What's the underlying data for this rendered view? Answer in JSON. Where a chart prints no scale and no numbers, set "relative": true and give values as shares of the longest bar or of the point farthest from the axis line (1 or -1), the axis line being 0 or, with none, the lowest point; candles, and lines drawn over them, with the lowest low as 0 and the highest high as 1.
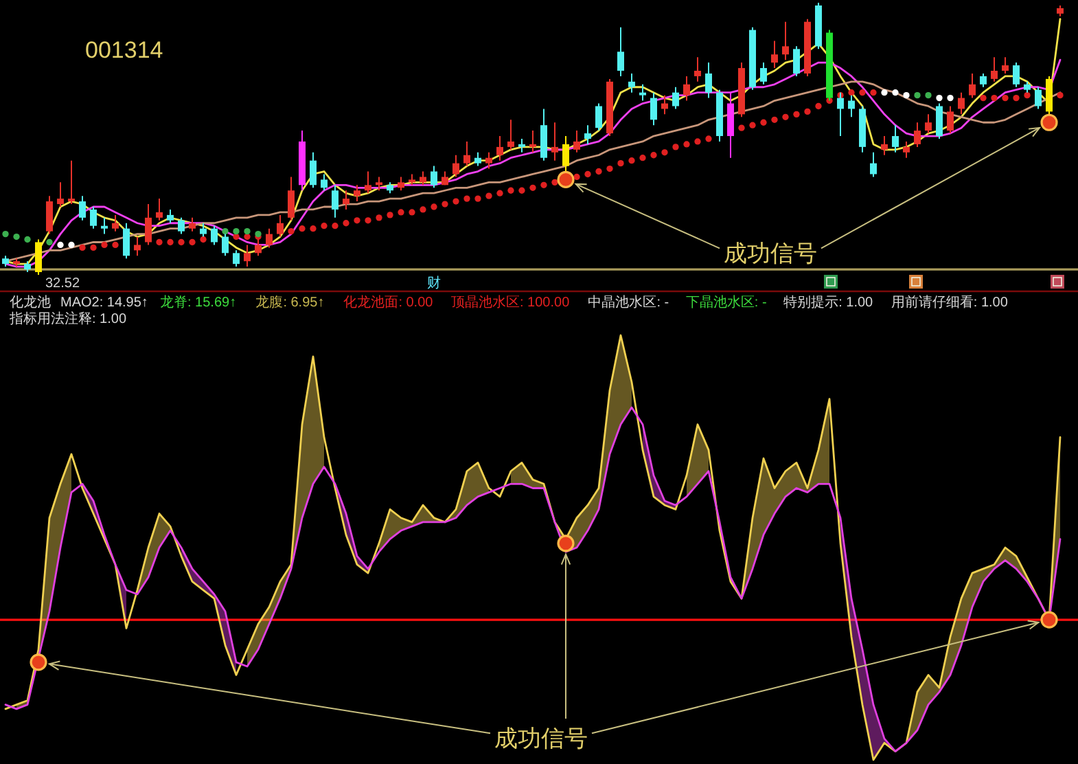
{
  "chart_data": [
    {
      "type": "candlestick",
      "title": "001314",
      "relative": true,
      "categories": [
        null,
        null,
        null,
        null,
        null,
        null,
        null,
        null,
        null,
        null,
        null,
        null,
        null,
        null,
        null,
        null,
        null,
        null,
        null,
        null,
        null,
        null,
        null,
        null,
        null,
        null,
        null,
        null,
        null,
        null,
        null,
        null,
        null,
        null,
        null,
        null,
        null,
        null,
        null,
        "财",
        null,
        null,
        null,
        null,
        null,
        null,
        null,
        null,
        null,
        null,
        null,
        null,
        null,
        null,
        null,
        null,
        null,
        null,
        null,
        null,
        null,
        null,
        null,
        null,
        null,
        null,
        null,
        null,
        null,
        null,
        null,
        null,
        null,
        null,
        null,
        null,
        null,
        null,
        null,
        null,
        null,
        null,
        null,
        null,
        null,
        null,
        null,
        null,
        null,
        null,
        null,
        null,
        null,
        null,
        null,
        null,
        null
      ],
      "ohlc": [
        [
          0.06,
          0.07,
          0.03,
          0.04
        ],
        [
          0.04,
          0.06,
          0.03,
          0.05
        ],
        [
          0.04,
          0.05,
          0.01,
          0.02
        ],
        [
          0.01,
          0.13,
          0,
          0.12
        ],
        [
          0.16,
          0.29,
          0.15,
          0.27
        ],
        [
          0.26,
          0.34,
          0.25,
          0.28
        ],
        [
          0.27,
          0.42,
          0.26,
          0.28
        ],
        [
          0.27,
          0.29,
          0.2,
          0.21
        ],
        [
          0.24,
          0.25,
          0.17,
          0.18
        ],
        [
          0.18,
          0.21,
          0.15,
          0.17
        ],
        [
          0.17,
          0.22,
          0.16,
          0.19
        ],
        [
          0.17,
          0.19,
          0.06,
          0.07
        ],
        [
          0.09,
          0.14,
          0.07,
          0.11
        ],
        [
          0.12,
          0.26,
          0.11,
          0.21
        ],
        [
          0.21,
          0.28,
          0.2,
          0.23
        ],
        [
          0.22,
          0.24,
          0.19,
          0.2
        ],
        [
          0.2,
          0.21,
          0.15,
          0.16
        ],
        [
          0.17,
          0.21,
          0.16,
          0.19
        ],
        [
          0.17,
          0.19,
          0.14,
          0.15
        ],
        [
          0.17,
          0.18,
          0.11,
          0.12
        ],
        [
          0.14,
          0.15,
          0.07,
          0.08
        ],
        [
          0.08,
          0.09,
          0.03,
          0.04
        ],
        [
          0.05,
          0.11,
          0.03,
          0.08
        ],
        [
          0.08,
          0.13,
          0.07,
          0.11
        ],
        [
          0.11,
          0.17,
          0.1,
          0.15
        ],
        [
          0.15,
          0.22,
          0.14,
          0.19
        ],
        [
          0.21,
          0.36,
          0.2,
          0.31
        ],
        [
          0.33,
          0.53,
          0.31,
          0.49
        ],
        [
          0.42,
          0.45,
          0.32,
          0.33
        ],
        [
          0.35,
          0.37,
          0.31,
          0.32
        ],
        [
          0.31,
          0.33,
          0.21,
          0.24
        ],
        [
          0.26,
          0.31,
          0.24,
          0.28
        ],
        [
          0.29,
          0.33,
          0.27,
          0.31
        ],
        [
          0.31,
          0.38,
          0.3,
          0.33
        ],
        [
          0.33,
          0.36,
          0.31,
          0.34
        ],
        [
          0.33,
          0.34,
          0.3,
          0.31
        ],
        [
          0.32,
          0.36,
          0.31,
          0.34
        ],
        [
          0.34,
          0.37,
          0.33,
          0.35
        ],
        [
          0.34,
          0.38,
          0.33,
          0.36
        ],
        [
          0.38,
          0.4,
          0.32,
          0.33
        ],
        [
          0.33,
          0.38,
          0.33,
          0.36
        ],
        [
          0.37,
          0.44,
          0.36,
          0.41
        ],
        [
          0.41,
          0.49,
          0.4,
          0.44
        ],
        [
          0.43,
          0.45,
          0.4,
          0.41
        ],
        [
          0.41,
          0.45,
          0.39,
          0.43
        ],
        [
          0.44,
          0.51,
          0.42,
          0.47
        ],
        [
          0.47,
          0.57,
          0.46,
          0.49
        ],
        [
          0.48,
          0.5,
          0.45,
          0.47
        ],
        [
          0.47,
          0.53,
          0.45,
          0.48
        ],
        [
          0.55,
          0.61,
          0.42,
          0.43
        ],
        [
          0.45,
          0.56,
          0.42,
          0.47
        ],
        [
          0.4,
          0.51,
          0.37,
          0.48
        ],
        [
          0.46,
          0.53,
          0.45,
          0.49
        ],
        [
          0.52,
          0.55,
          0.48,
          0.5
        ],
        [
          0.62,
          0.63,
          0.53,
          0.54
        ],
        [
          0.52,
          0.72,
          0.51,
          0.71
        ],
        [
          0.82,
          0.91,
          0.73,
          0.75
        ],
        [
          0.71,
          0.74,
          0.67,
          0.69
        ],
        [
          0.67,
          0.7,
          0.64,
          0.66
        ],
        [
          0.65,
          0.67,
          0.55,
          0.57
        ],
        [
          0.61,
          0.66,
          0.59,
          0.63
        ],
        [
          0.67,
          0.69,
          0.61,
          0.62
        ],
        [
          0.66,
          0.73,
          0.64,
          0.7
        ],
        [
          0.73,
          0.8,
          0.71,
          0.75
        ],
        [
          0.74,
          0.78,
          0.65,
          0.67
        ],
        [
          0.67,
          0.68,
          0.49,
          0.51
        ],
        [
          0.51,
          0.67,
          0.43,
          0.63
        ],
        [
          0.59,
          0.78,
          0.58,
          0.76
        ],
        [
          0.9,
          0.91,
          0.68,
          0.69
        ],
        [
          0.76,
          0.78,
          0.7,
          0.71
        ],
        [
          0.78,
          0.86,
          0.76,
          0.81
        ],
        [
          0.81,
          0.93,
          0.79,
          0.84
        ],
        [
          0.83,
          0.84,
          0.73,
          0.74
        ],
        [
          0.74,
          0.94,
          0.73,
          0.93
        ],
        [
          0.99,
          1,
          0.83,
          0.84
        ],
        [
          0.89,
          0.9,
          0.64,
          0.65
        ],
        [
          0.65,
          0.67,
          0.51,
          0.61
        ],
        [
          0.64,
          0.66,
          0.58,
          0.61
        ],
        [
          0.61,
          0.62,
          0.45,
          0.47
        ],
        [
          0.41,
          0.45,
          0.36,
          0.37
        ],
        [
          0.46,
          0.51,
          0.44,
          0.48
        ],
        [
          0.51,
          0.55,
          0.45,
          0.47
        ],
        [
          0.45,
          0.49,
          0.43,
          0.47
        ],
        [
          0.48,
          0.56,
          0.47,
          0.53
        ],
        [
          0.53,
          0.59,
          0.52,
          0.56
        ],
        [
          0.62,
          0.63,
          0.5,
          0.51
        ],
        [
          0.53,
          0.62,
          0.52,
          0.6
        ],
        [
          0.61,
          0.67,
          0.59,
          0.65
        ],
        [
          0.66,
          0.74,
          0.65,
          0.7
        ],
        [
          0.73,
          0.74,
          0.69,
          0.7
        ],
        [
          0.72,
          0.8,
          0.71,
          0.75
        ],
        [
          0.75,
          0.8,
          0.74,
          0.77
        ],
        [
          0.77,
          0.78,
          0.69,
          0.7
        ],
        [
          0.7,
          0.71,
          0.67,
          0.68
        ],
        [
          0.68,
          0.69,
          0.61,
          0.62
        ],
        [
          0.6,
          0.73,
          0.59,
          0.72
        ],
        [
          0.96,
          0.99,
          0.95,
          0.98
        ]
      ],
      "colors": [
        "#54f0f0",
        "#e8322a",
        "#54f0f0",
        "#ffe800",
        "#e8322a",
        "#e8322a",
        "#e8322a",
        "#54f0f0",
        "#54f0f0",
        "#54f0f0",
        "#e8322a",
        "#54f0f0",
        "#e8322a",
        "#e8322a",
        "#e8322a",
        "#54f0f0",
        "#54f0f0",
        "#e8322a",
        "#54f0f0",
        "#54f0f0",
        "#54f0f0",
        "#54f0f0",
        "#e8322a",
        "#e8322a",
        "#e8322a",
        "#e8322a",
        "#e8322a",
        "#ff30ff",
        "#54f0f0",
        "#54f0f0",
        "#54f0f0",
        "#e8322a",
        "#e8322a",
        "#e8322a",
        "#e8322a",
        "#54f0f0",
        "#e8322a",
        "#e8322a",
        "#e8322a",
        "#54f0f0",
        "#e8322a",
        "#e8322a",
        "#e8322a",
        "#54f0f0",
        "#e8322a",
        "#e8322a",
        "#e8322a",
        "#54f0f0",
        "#e8322a",
        "#54f0f0",
        "#e8322a",
        "#ffe800",
        "#e8322a",
        "#54f0f0",
        "#54f0f0",
        "#e8322a",
        "#54f0f0",
        "#54f0f0",
        "#54f0f0",
        "#54f0f0",
        "#e8322a",
        "#54f0f0",
        "#e8322a",
        "#e8322a",
        "#54f0f0",
        "#54f0f0",
        "#ff30ff",
        "#e8322a",
        "#54f0f0",
        "#54f0f0",
        "#e8322a",
        "#e8322a",
        "#54f0f0",
        "#e8322a",
        "#54f0f0",
        "#20e030",
        "#54f0f0",
        "#54f0f0",
        "#54f0f0",
        "#54f0f0",
        "#e8322a",
        "#54f0f0",
        "#e8322a",
        "#e8322a",
        "#e8322a",
        "#54f0f0",
        "#e8322a",
        "#e8322a",
        "#e8322a",
        "#54f0f0",
        "#e8322a",
        "#e8322a",
        "#54f0f0",
        "#54f0f0",
        "#54f0f0",
        "#ffe800",
        "#e8322a"
      ],
      "series": [
        {
          "type": "line",
          "color": "#f2e24a",
          "values": [
            0.05,
            0.04,
            0.04,
            0.09,
            0.16,
            0.25,
            0.27,
            0.26,
            0.23,
            0.21,
            0.2,
            0.16,
            0.14,
            0.15,
            0.19,
            0.21,
            0.2,
            0.19,
            0.18,
            0.16,
            0.13,
            0.1,
            0.08,
            0.09,
            0.11,
            0.14,
            0.2,
            0.31,
            0.37,
            0.38,
            0.33,
            0.3,
            0.29,
            0.3,
            0.32,
            0.33,
            0.33,
            0.34,
            0.34,
            0.34,
            0.34,
            0.37,
            0.4,
            0.42,
            0.42,
            0.44,
            0.46,
            0.47,
            0.47,
            0.47,
            0.46,
            0.46,
            0.48,
            0.5,
            0.53,
            0.58,
            0.67,
            0.69,
            0.69,
            0.67,
            0.65,
            0.64,
            0.66,
            0.69,
            0.7,
            0.67,
            0.64,
            0.66,
            0.7,
            0.73,
            0.75,
            0.78,
            0.79,
            0.82,
            0.85,
            0.8,
            0.73,
            0.67,
            0.62,
            0.48,
            0.46,
            0.46,
            0.47,
            0.49,
            0.52,
            0.53,
            0.55,
            0.58,
            0.63,
            0.67,
            0.7,
            0.73,
            0.73,
            0.71,
            0.67,
            0.63,
            0.94
          ]
        },
        {
          "type": "line",
          "color": "#f040f0",
          "values": [
            0.04,
            0.03,
            0.03,
            0.05,
            0.09,
            0.15,
            0.2,
            0.23,
            0.25,
            0.25,
            0.23,
            0.21,
            0.19,
            0.18,
            0.18,
            0.19,
            0.19,
            0.19,
            0.19,
            0.18,
            0.16,
            0.14,
            0.12,
            0.11,
            0.11,
            0.12,
            0.15,
            0.21,
            0.27,
            0.31,
            0.33,
            0.33,
            0.32,
            0.32,
            0.32,
            0.32,
            0.33,
            0.33,
            0.33,
            0.33,
            0.34,
            0.35,
            0.37,
            0.38,
            0.4,
            0.41,
            0.43,
            0.44,
            0.45,
            0.46,
            0.46,
            0.46,
            0.47,
            0.48,
            0.49,
            0.52,
            0.57,
            0.61,
            0.63,
            0.64,
            0.65,
            0.66,
            0.66,
            0.67,
            0.67,
            0.67,
            0.67,
            0.68,
            0.69,
            0.69,
            0.7,
            0.72,
            0.74,
            0.76,
            0.78,
            0.78,
            0.76,
            0.73,
            0.69,
            0.64,
            0.59,
            0.55,
            0.52,
            0.51,
            0.51,
            0.51,
            0.52,
            0.54,
            0.58,
            0.61,
            0.64,
            0.67,
            0.68,
            0.69,
            0.69,
            0.68,
            0.79
          ]
        },
        {
          "type": "line",
          "color": "#c8967a",
          "values": [
            0.05,
            0.06,
            0.07,
            0.08,
            0.09,
            0.09,
            0.1,
            0.11,
            0.12,
            0.12,
            0.13,
            0.14,
            0.15,
            0.15,
            0.16,
            0.17,
            0.17,
            0.18,
            0.19,
            0.19,
            0.2,
            0.21,
            0.21,
            0.22,
            0.22,
            0.23,
            0.23,
            0.24,
            0.24,
            0.25,
            0.25,
            0.26,
            0.26,
            0.27,
            0.27,
            0.28,
            0.28,
            0.29,
            0.3,
            0.3,
            0.31,
            0.32,
            0.32,
            0.33,
            0.34,
            0.34,
            0.35,
            0.36,
            0.37,
            0.38,
            0.39,
            0.4,
            0.42,
            0.43,
            0.44,
            0.46,
            0.47,
            0.48,
            0.49,
            0.51,
            0.52,
            0.53,
            0.54,
            0.55,
            0.57,
            0.58,
            0.59,
            0.6,
            0.61,
            0.62,
            0.64,
            0.65,
            0.66,
            0.67,
            0.68,
            0.69,
            0.7,
            0.71,
            0.71,
            0.7,
            0.68,
            0.67,
            0.65,
            0.63,
            0.62,
            0.6,
            0.59,
            0.58,
            0.57,
            0.56,
            0.56,
            0.57,
            0.59,
            0.61,
            0.63,
            0.65,
            0.67
          ]
        },
        {
          "type": "scatter",
          "marker": "circle",
          "color": "#e02020",
          "values": [
            null,
            null,
            null,
            null,
            null,
            null,
            null,
            0.1,
            0.1,
            0.11,
            0.11,
            null,
            null,
            null,
            0.12,
            0.12,
            0.12,
            0.12,
            0.13,
            null,
            null,
            0.14,
            0.14,
            0.14,
            null,
            null,
            0.16,
            0.17,
            0.17,
            0.18,
            0.18,
            0.19,
            0.2,
            0.2,
            0.21,
            0.22,
            0.23,
            0.23,
            0.24,
            0.25,
            0.26,
            0.27,
            0.28,
            0.28,
            0.29,
            0.3,
            0.31,
            0.31,
            0.32,
            0.33,
            0.34,
            null,
            0.36,
            0.37,
            0.38,
            0.39,
            0.41,
            0.42,
            0.43,
            0.44,
            0.45,
            0.47,
            0.48,
            0.49,
            0.5,
            null,
            null,
            0.54,
            0.55,
            0.56,
            0.57,
            0.58,
            0.59,
            0.6,
            0.62,
            0.64,
            0.66,
            0.67,
            0.67,
            0.67,
            null,
            null,
            null,
            null,
            null,
            null,
            null,
            null,
            null,
            0.65,
            0.65,
            0.65,
            0.65,
            0.66,
            null,
            null,
            0.66
          ]
        },
        {
          "type": "scatter",
          "marker": "circle",
          "color": "#3cb050",
          "values": [
            0.15,
            0.14,
            0.13,
            null,
            0.12,
            0.11,
            0.11,
            null,
            null,
            null,
            null,
            null,
            null,
            null,
            null,
            null,
            null,
            null,
            null,
            null,
            0.16,
            0.16,
            0.16,
            0.15,
            null,
            null,
            null,
            null,
            null,
            null,
            null,
            null,
            null,
            null,
            null,
            null,
            null,
            null,
            null,
            null,
            null,
            null,
            null,
            null,
            null,
            null,
            null,
            null,
            null,
            null,
            null,
            null,
            null,
            null,
            null,
            null,
            null,
            null,
            null,
            null,
            null,
            null,
            null,
            null,
            null,
            null,
            null,
            null,
            null,
            null,
            null,
            null,
            null,
            null,
            null,
            null,
            null,
            null,
            null,
            null,
            0.67,
            0.67,
            0.66,
            0.66,
            0.66,
            0.65,
            0.65,
            null,
            null,
            null,
            null,
            null,
            null,
            null,
            null,
            null,
            null
          ],
          "colors": [
            null,
            null,
            null,
            null,
            null,
            "#ffffff",
            "#ffffff",
            null,
            null,
            null,
            null,
            null,
            null,
            null,
            null,
            null,
            null,
            null,
            null,
            null,
            null,
            null,
            null,
            null,
            null,
            null,
            null,
            null,
            null,
            null,
            null,
            null,
            null,
            null,
            null,
            null,
            null,
            null,
            null,
            null,
            null,
            null,
            null,
            null,
            null,
            null,
            null,
            null,
            null,
            null,
            null,
            null,
            null,
            null,
            null,
            null,
            null,
            null,
            null,
            null,
            null,
            null,
            null,
            null,
            null,
            null,
            null,
            null,
            null,
            null,
            null,
            null,
            null,
            null,
            null,
            null,
            null,
            null,
            null,
            null,
            "#ffffff",
            "#ffffff",
            "#ffffff",
            null,
            null,
            "#ffffff",
            "#ffffff",
            null,
            null,
            null,
            null,
            null,
            null,
            null,
            null,
            null,
            null
          ]
        },
        {
          "type": "scatter",
          "marker": "circle",
          "color": "#e8401c",
          "values": [
            null,
            null,
            null,
            null,
            null,
            null,
            null,
            null,
            null,
            null,
            null,
            null,
            null,
            null,
            null,
            null,
            null,
            null,
            null,
            null,
            null,
            null,
            null,
            null,
            null,
            null,
            null,
            null,
            null,
            null,
            null,
            null,
            null,
            null,
            null,
            null,
            null,
            null,
            null,
            null,
            null,
            null,
            null,
            null,
            null,
            null,
            null,
            null,
            null,
            null,
            null,
            0.35,
            null,
            null,
            null,
            null,
            null,
            null,
            null,
            null,
            null,
            null,
            null,
            null,
            null,
            null,
            null,
            null,
            null,
            null,
            null,
            null,
            null,
            null,
            null,
            null,
            null,
            null,
            null,
            null,
            null,
            null,
            null,
            null,
            null,
            null,
            null,
            null,
            null,
            null,
            null,
            null,
            null,
            null,
            null,
            0.56,
            null
          ]
        }
      ],
      "ref_lines": [
        {
          "axis": "y",
          "value": 0.02,
          "color": "#a89a5a"
        }
      ],
      "annotations": [
        {
          "text": "32.52",
          "y": 0
        },
        "成功信号"
      ]
    },
    {
      "type": "line",
      "title": "化龙池",
      "relative": true,
      "categories": [
        null,
        null,
        null,
        null,
        null,
        null,
        null,
        null,
        null,
        null,
        null,
        null,
        null,
        null,
        null,
        null,
        null,
        null,
        null,
        null,
        null,
        null,
        null,
        null,
        null,
        null,
        null,
        null,
        null,
        null,
        null,
        null,
        null,
        null,
        null,
        null,
        null,
        null,
        null,
        null,
        null,
        null,
        null,
        null,
        null,
        null,
        null,
        null,
        null,
        null,
        null,
        null,
        null,
        null,
        null,
        null,
        null,
        null,
        null,
        null,
        null,
        null,
        null,
        null,
        null,
        null,
        null,
        null,
        null,
        null,
        null,
        null,
        null,
        null,
        null,
        null,
        null,
        null,
        null,
        null,
        null,
        null,
        null,
        null,
        null,
        null,
        null,
        null,
        null,
        null,
        null,
        null,
        null,
        null,
        null,
        null,
        null
      ],
      "series": [
        {
          "type": "line",
          "color": "#f0d050",
          "values": [
            0.12,
            0.13,
            0.14,
            0.26,
            0.57,
            0.65,
            0.72,
            0.64,
            0.58,
            0.52,
            0.46,
            0.31,
            0.4,
            0.5,
            0.58,
            0.55,
            0.48,
            0.42,
            0.4,
            0.38,
            0.27,
            0.2,
            0.26,
            0.32,
            0.36,
            0.42,
            0.46,
            0.79,
            0.95,
            0.76,
            0.64,
            0.53,
            0.46,
            0.44,
            0.51,
            0.59,
            0.57,
            0.56,
            0.6,
            0.57,
            0.56,
            0.59,
            0.68,
            0.7,
            0.64,
            0.62,
            0.68,
            0.7,
            0.66,
            0.65,
            0.56,
            0.52,
            0.57,
            0.6,
            0.64,
            0.87,
            1,
            0.89,
            0.73,
            0.62,
            0.6,
            0.59,
            0.67,
            0.79,
            0.73,
            0.54,
            0.42,
            0.38,
            0.57,
            0.71,
            0.64,
            0.68,
            0.7,
            0.64,
            0.73,
            0.85,
            0.51,
            0.29,
            0.13,
            0,
            0.04,
            0.02,
            0.04,
            0.16,
            0.2,
            0.17,
            0.29,
            0.38,
            0.44,
            0.45,
            0.46,
            0.5,
            0.48,
            0.43,
            0.38,
            0.33,
            0.76
          ],
          "lower": [
            null,
            0.12,
            0.13,
            0.24,
            0.35,
            0.5,
            0.63,
            null,
            null,
            null,
            null,
            null,
            0.39,
            0.43,
            0.5,
            0.54,
            null,
            null,
            null,
            null,
            null,
            null,
            0.22,
            0.26,
            0.32,
            0.38,
            0.45,
            0.57,
            0.65,
            0.69,
            null,
            null,
            null,
            null,
            0.49,
            0.52,
            0.54,
            0.55,
            0.56,
            0.56,
            0.56,
            0.57,
            0.6,
            0.62,
            0.63,
            null,
            0.65,
            0.65,
            0.64,
            0.64,
            0.56,
            0.49,
            0.5,
            0.54,
            0.59,
            0.72,
            0.79,
            0.83,
            null,
            null,
            null,
            null,
            0.62,
            0.65,
            0.68,
            null,
            null,
            0.38,
            0.45,
            0.53,
            0.58,
            0.62,
            0.64,
            0.63,
            0.65,
            0.65,
            null,
            null,
            null,
            null,
            null,
            0.02,
            0.04,
            0.07,
            0.13,
            0.16,
            0.2,
            0.27,
            0.36,
            0.42,
            0.45,
            0.47,
            0.45,
            0.42,
            0.38,
            0.33,
            0.52
          ],
          "upper": [
            null,
            0.13,
            0.14,
            0.26,
            0.57,
            0.65,
            0.72,
            null,
            null,
            null,
            null,
            null,
            0.4,
            0.5,
            0.58,
            0.55,
            null,
            null,
            null,
            null,
            null,
            null,
            0.26,
            0.32,
            0.36,
            0.42,
            0.46,
            0.79,
            0.95,
            0.76,
            null,
            null,
            null,
            null,
            0.51,
            0.59,
            0.57,
            0.56,
            0.6,
            0.57,
            0.56,
            0.59,
            0.68,
            0.7,
            0.64,
            null,
            0.68,
            0.7,
            0.66,
            0.65,
            0.56,
            0.52,
            0.57,
            0.6,
            0.64,
            0.87,
            1,
            0.89,
            null,
            null,
            null,
            null,
            0.67,
            0.79,
            0.73,
            null,
            null,
            0.38,
            0.57,
            0.71,
            0.64,
            0.68,
            0.7,
            0.64,
            0.73,
            0.85,
            null,
            null,
            null,
            null,
            null,
            0.02,
            0.04,
            0.16,
            0.2,
            0.17,
            0.29,
            0.38,
            0.44,
            0.45,
            0.46,
            0.5,
            0.48,
            0.43,
            0.38,
            0.33,
            0.76
          ]
        },
        {
          "type": "line",
          "color": "#e040e0",
          "values": [
            0.13,
            0.12,
            0.13,
            0.24,
            0.35,
            0.5,
            0.63,
            0.65,
            0.61,
            0.53,
            0.46,
            0.4,
            0.39,
            0.43,
            0.5,
            0.54,
            0.5,
            0.45,
            0.42,
            0.39,
            0.35,
            0.23,
            0.22,
            0.26,
            0.32,
            0.38,
            0.45,
            0.57,
            0.65,
            0.69,
            0.65,
            0.58,
            0.48,
            0.45,
            0.49,
            0.52,
            0.54,
            0.55,
            0.56,
            0.56,
            0.56,
            0.57,
            0.6,
            0.62,
            0.63,
            0.64,
            0.65,
            0.65,
            0.64,
            0.64,
            0.56,
            0.49,
            0.5,
            0.54,
            0.59,
            0.72,
            0.79,
            0.83,
            0.79,
            0.67,
            0.61,
            0.6,
            0.62,
            0.65,
            0.68,
            0.56,
            0.43,
            0.38,
            0.45,
            0.53,
            0.58,
            0.62,
            0.64,
            0.63,
            0.65,
            0.65,
            0.57,
            0.38,
            0.26,
            0.13,
            0.05,
            0.02,
            0.04,
            0.07,
            0.13,
            0.16,
            0.2,
            0.27,
            0.36,
            0.42,
            0.45,
            0.47,
            0.45,
            0.42,
            0.38,
            0.33,
            0.52
          ],
          "lower": [
            null,
            null,
            null,
            null,
            null,
            null,
            null,
            0.64,
            0.58,
            0.52,
            0.46,
            0.31,
            null,
            null,
            null,
            null,
            0.48,
            0.42,
            0.4,
            0.38,
            0.27,
            0.2,
            null,
            null,
            null,
            null,
            null,
            null,
            null,
            null,
            0.64,
            0.53,
            0.46,
            0.44,
            null,
            null,
            null,
            null,
            null,
            null,
            null,
            null,
            null,
            null,
            null,
            null,
            null,
            null,
            null,
            null,
            null,
            null,
            null,
            null,
            null,
            null,
            null,
            null,
            0.73,
            0.62,
            0.6,
            0.59,
            null,
            null,
            null,
            0.54,
            0.42,
            0.38,
            null,
            null,
            null,
            null,
            null,
            null,
            null,
            null,
            0.51,
            0.29,
            0.13,
            0,
            0.04,
            0.02,
            0.04,
            null,
            null,
            null,
            null,
            null,
            null,
            null,
            null,
            null,
            null,
            null,
            null,
            null,
            null
          ],
          "upper": [
            null,
            null,
            null,
            null,
            null,
            null,
            null,
            0.65,
            0.61,
            0.53,
            0.46,
            0.4,
            null,
            null,
            null,
            null,
            0.5,
            0.45,
            0.42,
            0.39,
            0.35,
            0.23,
            null,
            null,
            null,
            null,
            null,
            null,
            null,
            null,
            0.65,
            0.58,
            0.48,
            0.45,
            null,
            null,
            null,
            null,
            null,
            null,
            null,
            null,
            null,
            null,
            null,
            null,
            null,
            null,
            null,
            null,
            null,
            null,
            null,
            null,
            null,
            null,
            null,
            null,
            0.79,
            0.67,
            0.61,
            0.6,
            null,
            null,
            null,
            0.56,
            0.43,
            0.38,
            null,
            null,
            null,
            null,
            null,
            null,
            null,
            null,
            0.57,
            0.38,
            0.26,
            0.13,
            0.05,
            0.02,
            0.04,
            null,
            null,
            null,
            null,
            null,
            null,
            null,
            null,
            null,
            null,
            null,
            null,
            null,
            null
          ]
        },
        {
          "type": "scatter",
          "marker": "circle",
          "color": "#e8401c",
          "values": [
            null,
            null,
            null,
            0.23,
            null,
            null,
            null,
            null,
            null,
            null,
            null,
            null,
            null,
            null,
            null,
            null,
            null,
            null,
            null,
            null,
            null,
            null,
            null,
            null,
            null,
            null,
            null,
            null,
            null,
            null,
            null,
            null,
            null,
            null,
            null,
            null,
            null,
            null,
            null,
            null,
            null,
            null,
            null,
            null,
            null,
            null,
            null,
            null,
            null,
            null,
            null,
            0.51,
            null,
            null,
            null,
            null,
            null,
            null,
            null,
            null,
            null,
            null,
            null,
            null,
            null,
            null,
            null,
            null,
            null,
            null,
            null,
            null,
            null,
            null,
            null,
            null,
            null,
            null,
            null,
            null,
            null,
            null,
            null,
            null,
            null,
            null,
            null,
            null,
            null,
            null,
            null,
            null,
            null,
            null,
            null,
            0.33,
            null
          ]
        }
      ],
      "ref_lines": [
        {
          "axis": "y",
          "value": 0.33,
          "color": "#ff1010"
        }
      ],
      "annotations": [
        "MAO2: 14.95↑",
        "龙脊: 15.69↑",
        "龙腹: 6.95↑",
        "化龙池面: 0.00",
        "顶晶池水区: 100.00",
        "中晶池水区: -",
        "下晶池水区: -",
        "特别提示: 1.00",
        "用前请仔细看: 1.00",
        "指标用法注释: 1.00",
        "成功信号"
      ]
    }
  ]
}
